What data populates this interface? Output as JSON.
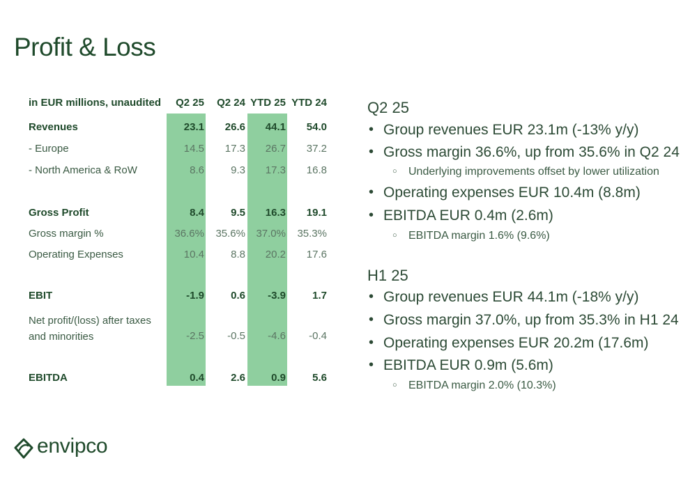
{
  "title": "Profit & Loss",
  "table": {
    "header_label": "in EUR millions, unaudited",
    "columns": [
      "Q2 25",
      "Q2 24",
      "YTD 25",
      "YTD 24"
    ],
    "rows": [
      {
        "label": "Revenues",
        "values": [
          "23.1",
          "26.6",
          "44.1",
          "54.0"
        ]
      },
      {
        "label": "- Europe",
        "values": [
          "14.5",
          "17.3",
          "26.7",
          "37.2"
        ]
      },
      {
        "label": "- North America & RoW",
        "values": [
          "8.6",
          "9.3",
          "17.3",
          "16.8"
        ]
      },
      {
        "label": "Gross Profit",
        "values": [
          "8.4",
          "9.5",
          "16.3",
          "19.1"
        ]
      },
      {
        "label": "Gross margin %",
        "values": [
          "36.6%",
          "35.6%",
          "37.0%",
          "35.3%"
        ]
      },
      {
        "label": "Operating Expenses",
        "values": [
          "10.4",
          "8.8",
          "20.2",
          "17.6"
        ]
      },
      {
        "label": "EBIT",
        "values": [
          "-1.9",
          "0.6",
          "-3.9",
          "1.7"
        ]
      },
      {
        "label": "Net profit/(loss) after taxes and minorities",
        "values": [
          "-2.5",
          "-0.5",
          "-4.6",
          "-0.4"
        ]
      },
      {
        "label": "EBITDA",
        "values": [
          "0.4",
          "2.6",
          "0.9",
          "5.6"
        ]
      }
    ]
  },
  "summary": {
    "q2": {
      "title": "Q2 25",
      "b1": "Group revenues EUR 23.1m (-13% y/y)",
      "b2": "Gross margin 36.6%, up from 35.6% in Q2 24",
      "b2_sub": "Underlying improvements offset by lower utilization",
      "b3": "Operating expenses EUR 10.4m (8.8m)",
      "b4": "EBITDA EUR 0.4m (2.6m)",
      "b4_sub": "EBITDA margin 1.6% (9.6%)"
    },
    "h1": {
      "title": "H1 25",
      "b1": "Group revenues EUR 44.1m (-18% y/y)",
      "b2": "Gross margin 37.0%, up from 35.3% in H1 24",
      "b3": "Operating expenses EUR 20.2m (17.6m)",
      "b4": "EBITDA EUR 0.9m (5.6m)",
      "b4_sub": "EBITDA margin 2.0% (10.3%)"
    }
  },
  "logo": {
    "text": "envipco",
    "icon": "envipco-leaf-icon"
  },
  "colors": {
    "accent": "#8fcf9f",
    "text": "#1f4a2b"
  }
}
